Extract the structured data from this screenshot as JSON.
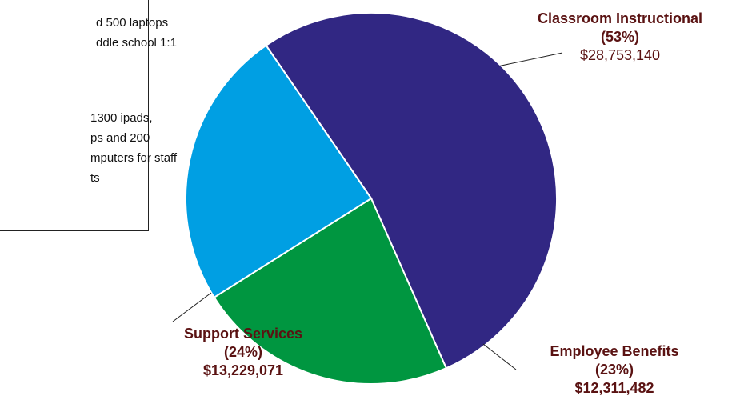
{
  "note": {
    "lines": [
      "d 500 laptops",
      "ddle school 1:1",
      "1300 ipads,",
      "ps and 200",
      "mputers for staff",
      "ts"
    ]
  },
  "chart_data": {
    "type": "pie",
    "slices": [
      {
        "label": "Classroom Instructional",
        "percent_label": "(53%)",
        "value_label": "$28,753,140",
        "value": 28753140,
        "color": "#312783"
      },
      {
        "label": "Employee Benefits",
        "percent_label": "(23%)",
        "value_label": "$12,311,482",
        "value": 12311482,
        "color": "#009640"
      },
      {
        "label": "Support Services",
        "percent_label": "(24%)",
        "value_label": "$13,229,071",
        "value": 13229071,
        "color": "#009fe3"
      }
    ]
  }
}
